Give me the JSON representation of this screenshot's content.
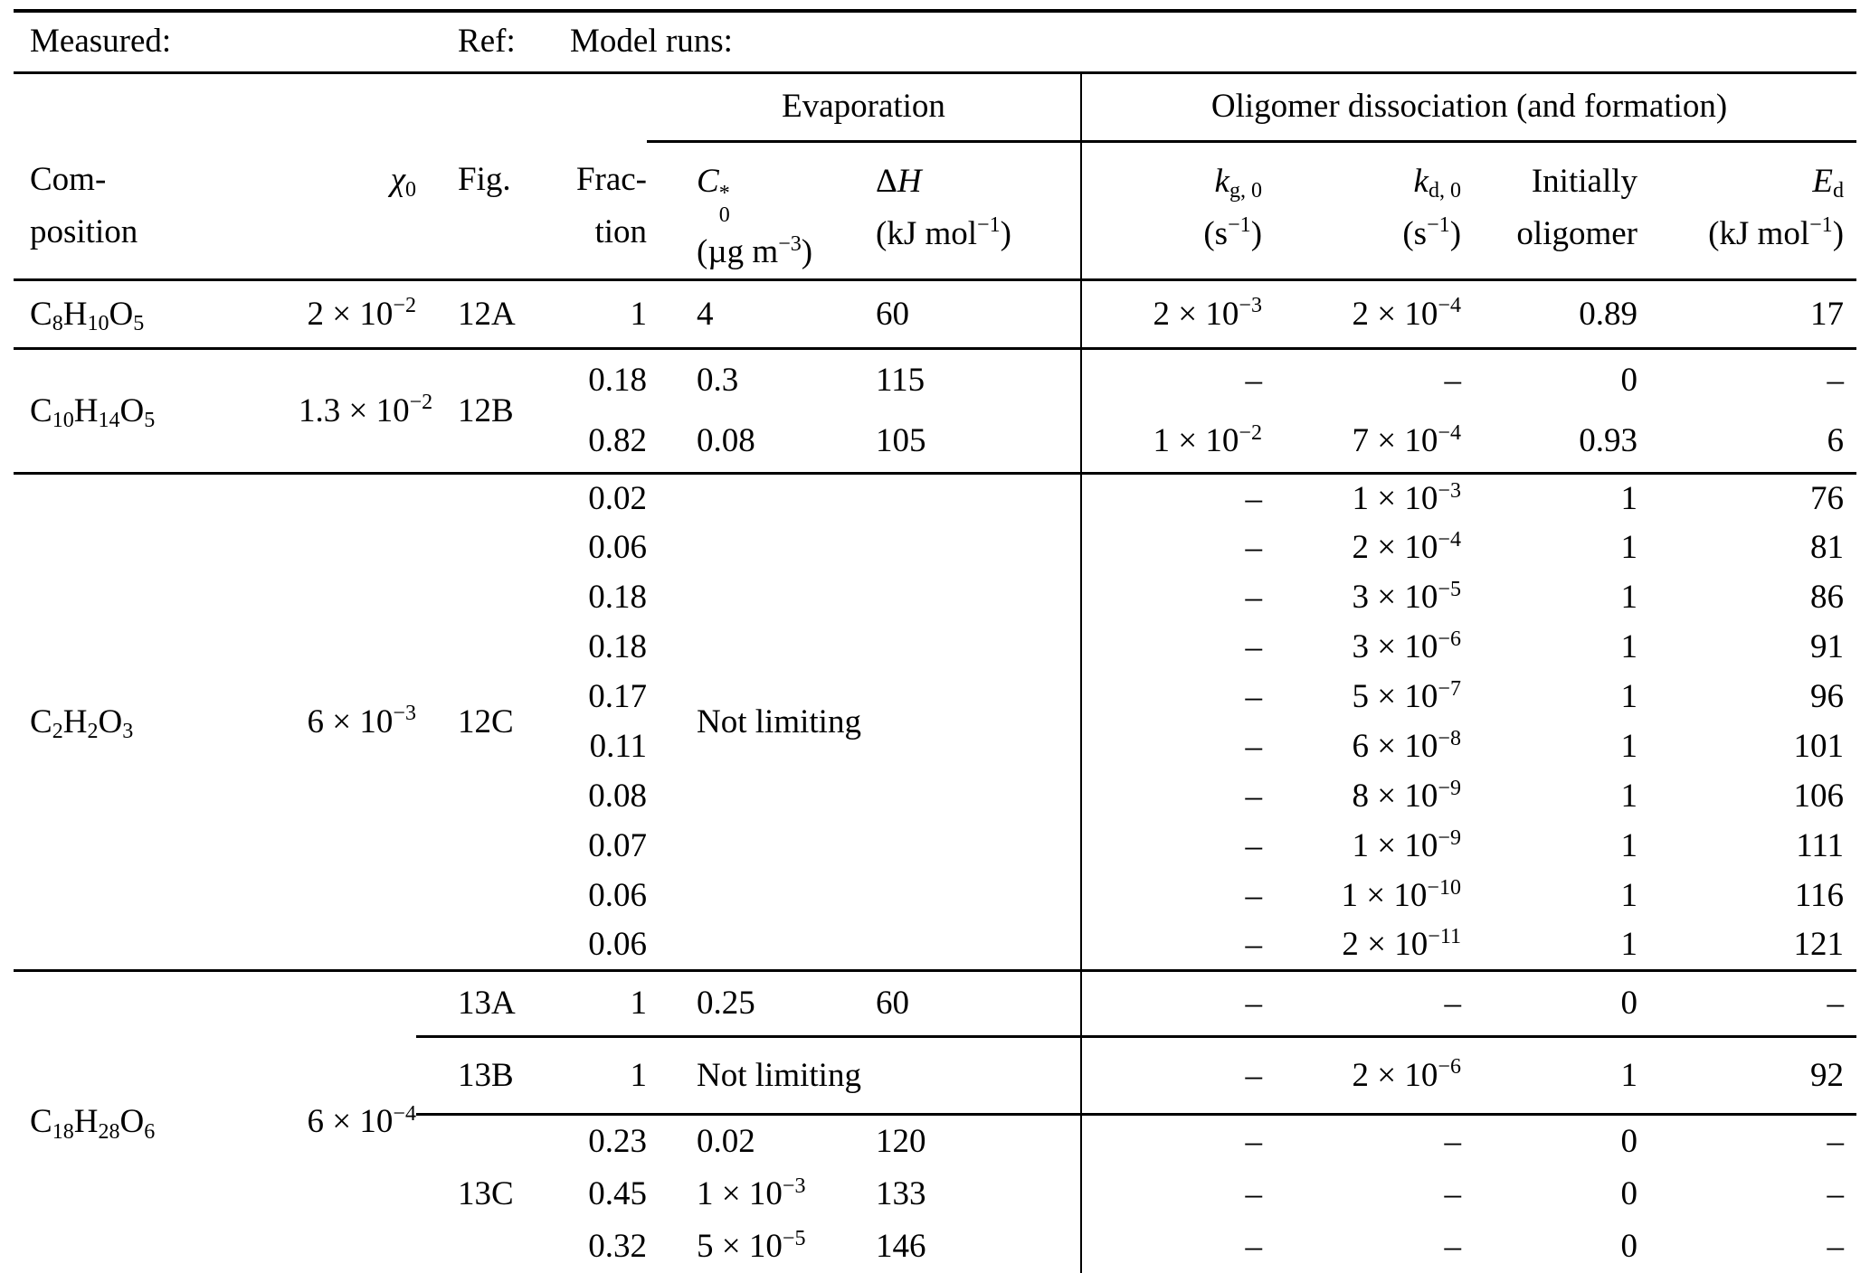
{
  "meta": {
    "measured": "Measured:",
    "ref": "Ref:",
    "model_runs": "Model runs:"
  },
  "group_headers": {
    "evaporation": "Evaporation",
    "oligomer": "Oligomer dissociation (and formation)"
  },
  "columns": {
    "composition": "Com-\nposition",
    "chi0": "//χ//_{0}",
    "fig": "Fig.",
    "fraction": "Frac-\ntion",
    "c0star": "//C//_{0}^{*}\n(µg m^{−3})",
    "delta_h": "Δ//H//\n(kJ mol^{−1})",
    "kg0": "//k//_{g, 0}\n(s^{−1})",
    "kd0": "//k//_{d, 0}\n(s^{−1})",
    "initially_oligomer": "Initially\noligomer",
    "ed": "//E//_{d}\n(kJ mol^{−1})"
  },
  "body": {
    "g12A": {
      "comp": "C_{8}H_{10}O_{5}",
      "chi": "2 × 10^{−2}",
      "fig": "12A",
      "rows": [
        {
          "frac": "1",
          "c0": "4",
          "dh": "60",
          "kg": "2 × 10^{−3}",
          "kd": "2 × 10^{−4}",
          "init": "0.89",
          "ed": "17"
        }
      ]
    },
    "g12B": {
      "comp": "C_{10}H_{14}O_{5}",
      "chi": "1.3 × 10^{−2}",
      "fig": "12B",
      "rows": [
        {
          "frac": "0.18",
          "c0": "0.3",
          "dh": "115",
          "kg": "–",
          "kd": "–",
          "init": "0",
          "ed": "–"
        },
        {
          "frac": "0.82",
          "c0": "0.08",
          "dh": "105",
          "kg": "1 × 10^{−2}",
          "kd": "7 × 10^{−4}",
          "init": "0.93",
          "ed": "6"
        }
      ]
    },
    "g12C": {
      "comp": "C_{2}H_{2}O_{3}",
      "chi": "6 × 10^{−3}",
      "fig": "12C",
      "note": "Not limiting",
      "rows": [
        {
          "frac": "0.02",
          "kg": "–",
          "kd": "1 × 10^{−3}",
          "init": "1",
          "ed": "76"
        },
        {
          "frac": "0.06",
          "kg": "–",
          "kd": "2 × 10^{−4}",
          "init": "1",
          "ed": "81"
        },
        {
          "frac": "0.18",
          "kg": "–",
          "kd": "3 × 10^{−5}",
          "init": "1",
          "ed": "86"
        },
        {
          "frac": "0.18",
          "kg": "–",
          "kd": "3 × 10^{−6}",
          "init": "1",
          "ed": "91"
        },
        {
          "frac": "0.17",
          "kg": "–",
          "kd": "5 × 10^{−7}",
          "init": "1",
          "ed": "96"
        },
        {
          "frac": "0.11",
          "kg": "–",
          "kd": "6 × 10^{−8}",
          "init": "1",
          "ed": "101"
        },
        {
          "frac": "0.08",
          "kg": "–",
          "kd": "8 × 10^{−9}",
          "init": "1",
          "ed": "106"
        },
        {
          "frac": "0.07",
          "kg": "–",
          "kd": "1 × 10^{−9}",
          "init": "1",
          "ed": "111"
        },
        {
          "frac": "0.06",
          "kg": "–",
          "kd": "1 × 10^{−10}",
          "init": "1",
          "ed": "116"
        },
        {
          "frac": "0.06",
          "kg": "–",
          "kd": "2 × 10^{−11}",
          "init": "1",
          "ed": "121"
        }
      ]
    },
    "g13": {
      "comp": "C_{18}H_{28}O_{6}",
      "chi": "6 × 10^{−4}",
      "r13A": {
        "fig": "13A",
        "frac": "1",
        "c0": "0.25",
        "dh": "60",
        "kg": "–",
        "kd": "–",
        "init": "0",
        "ed": "–"
      },
      "r13B": {
        "fig": "13B",
        "frac": "1",
        "note": "Not limiting",
        "kg": "–",
        "kd": "2 × 10^{−6}",
        "init": "1",
        "ed": "92"
      },
      "r13C": {
        "fig": "13C",
        "rows": [
          {
            "frac": "0.23",
            "c0": "0.02",
            "dh": "120",
            "kg": "–",
            "kd": "–",
            "init": "0",
            "ed": "–"
          },
          {
            "frac": "0.45",
            "c0": "1 × 10^{−3}",
            "dh": "133",
            "kg": "–",
            "kd": "–",
            "init": "0",
            "ed": "–"
          },
          {
            "frac": "0.32",
            "c0": "5 × 10^{−5}",
            "dh": "146",
            "kg": "–",
            "kd": "–",
            "init": "0",
            "ed": "–"
          }
        ]
      }
    }
  }
}
